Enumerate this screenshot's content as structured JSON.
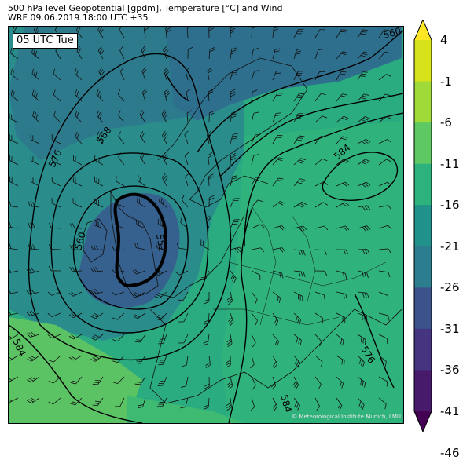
{
  "header": {
    "line1": "500 hPa level Geopotential [gpdm], Temperature [°C] and Wind",
    "line2": "WRF 09.06.2019 18:00 UTC +35"
  },
  "map": {
    "valid_time_label": "05 UTC Tue",
    "credit": "© Meteorological Institute Munich, LMU",
    "contour_labels": [
      "560",
      "568",
      "576",
      "584",
      "560",
      "552",
      "584",
      "576",
      "584"
    ],
    "colors": {
      "very_cold": "#3b5a8c",
      "cold": "#2f6d8e",
      "cool": "#25818c",
      "mid": "#219a88",
      "mild": "#2fb37c",
      "warm": "#5dc45f",
      "land_lines": "#111111",
      "contour": "#000000"
    }
  },
  "colorbar": {
    "tick_labels": [
      "4",
      "-1",
      "-6",
      "-11",
      "-16",
      "-21",
      "-26",
      "-31",
      "-36",
      "-41",
      "-46"
    ],
    "colors": [
      "#fde725",
      "#d8e21a",
      "#a0da39",
      "#5ec962",
      "#2db27d",
      "#21918c",
      "#2c7e8e",
      "#3b528b",
      "#453581",
      "#481a6c",
      "#440154"
    ]
  }
}
